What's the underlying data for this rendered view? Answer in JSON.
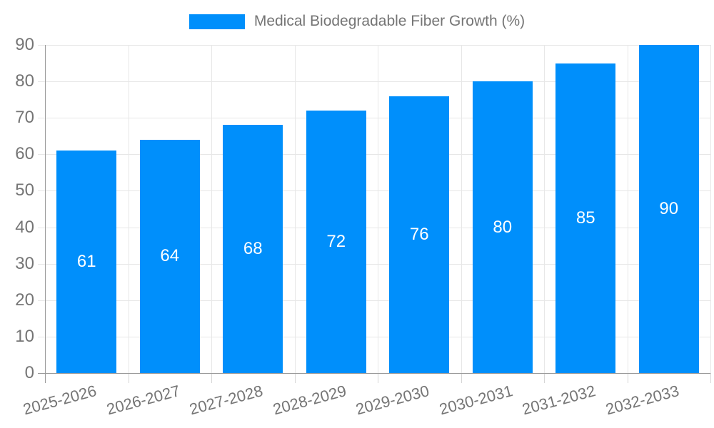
{
  "chart_data": {
    "type": "bar",
    "title": "Medical Biodegradable Fiber Growth (%)",
    "categories": [
      "2025-2026",
      "2026-2027",
      "2027-2028",
      "2028-2029",
      "2029-2030",
      "2030-2031",
      "2031-2032",
      "2032-2033"
    ],
    "values": [
      61,
      64,
      68,
      72,
      76,
      80,
      85,
      90
    ],
    "series_name": "Medical Biodegradable Fiber Growth (%)",
    "xlabel": "",
    "ylabel": "",
    "ylim": [
      0,
      90
    ],
    "ytick_step": 10,
    "yticks": [
      0,
      10,
      20,
      30,
      40,
      50,
      60,
      70,
      80,
      90
    ],
    "grid": true,
    "legend_position": "top",
    "colors": {
      "bar": "#008FFB",
      "bar_label": "#ffffff",
      "grid": "#e7e7e7",
      "axis": "#9a9a9a",
      "tick": "#d6d6d6",
      "text": "#757575"
    }
  }
}
